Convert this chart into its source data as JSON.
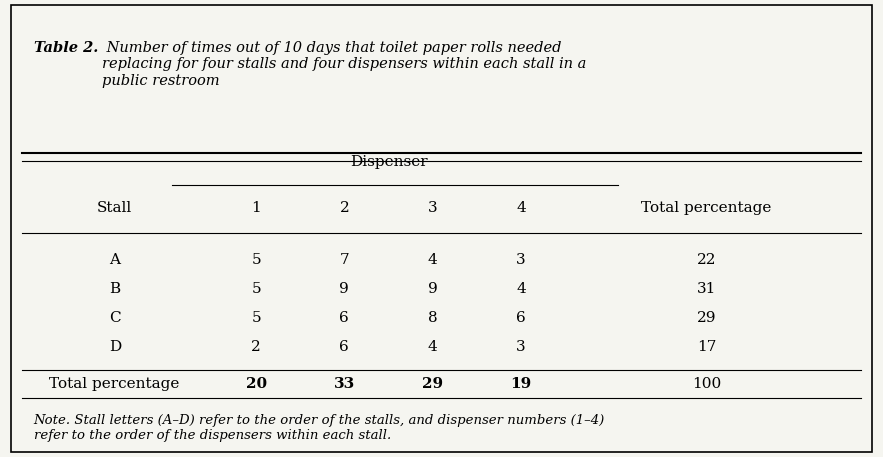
{
  "title_bold": "Table 2.",
  "title_italic": " Number of times out of 10 days that toilet paper rolls needed\nreplacing for four stalls and four dispensers within each stall in a\npublic restroom",
  "dispenser_header": "Dispenser",
  "col_headers": [
    "Stall",
    "1",
    "2",
    "3",
    "4",
    "Total percentage"
  ],
  "rows": [
    [
      "A",
      "5",
      "7",
      "4",
      "3",
      "22"
    ],
    [
      "B",
      "5",
      "9",
      "9",
      "4",
      "31"
    ],
    [
      "C",
      "5",
      "6",
      "8",
      "6",
      "29"
    ],
    [
      "D",
      "2",
      "6",
      "4",
      "3",
      "17"
    ],
    [
      "Total percentage",
      "20",
      "33",
      "29",
      "19",
      "100"
    ]
  ],
  "note": "Note. Stall letters (A–D) refer to the order of the stalls, and dispenser numbers (1–4)\nrefer to the order of the dispensers within each stall.",
  "bg_color": "#f5f5f0",
  "border_color": "#000000",
  "text_color": "#000000"
}
